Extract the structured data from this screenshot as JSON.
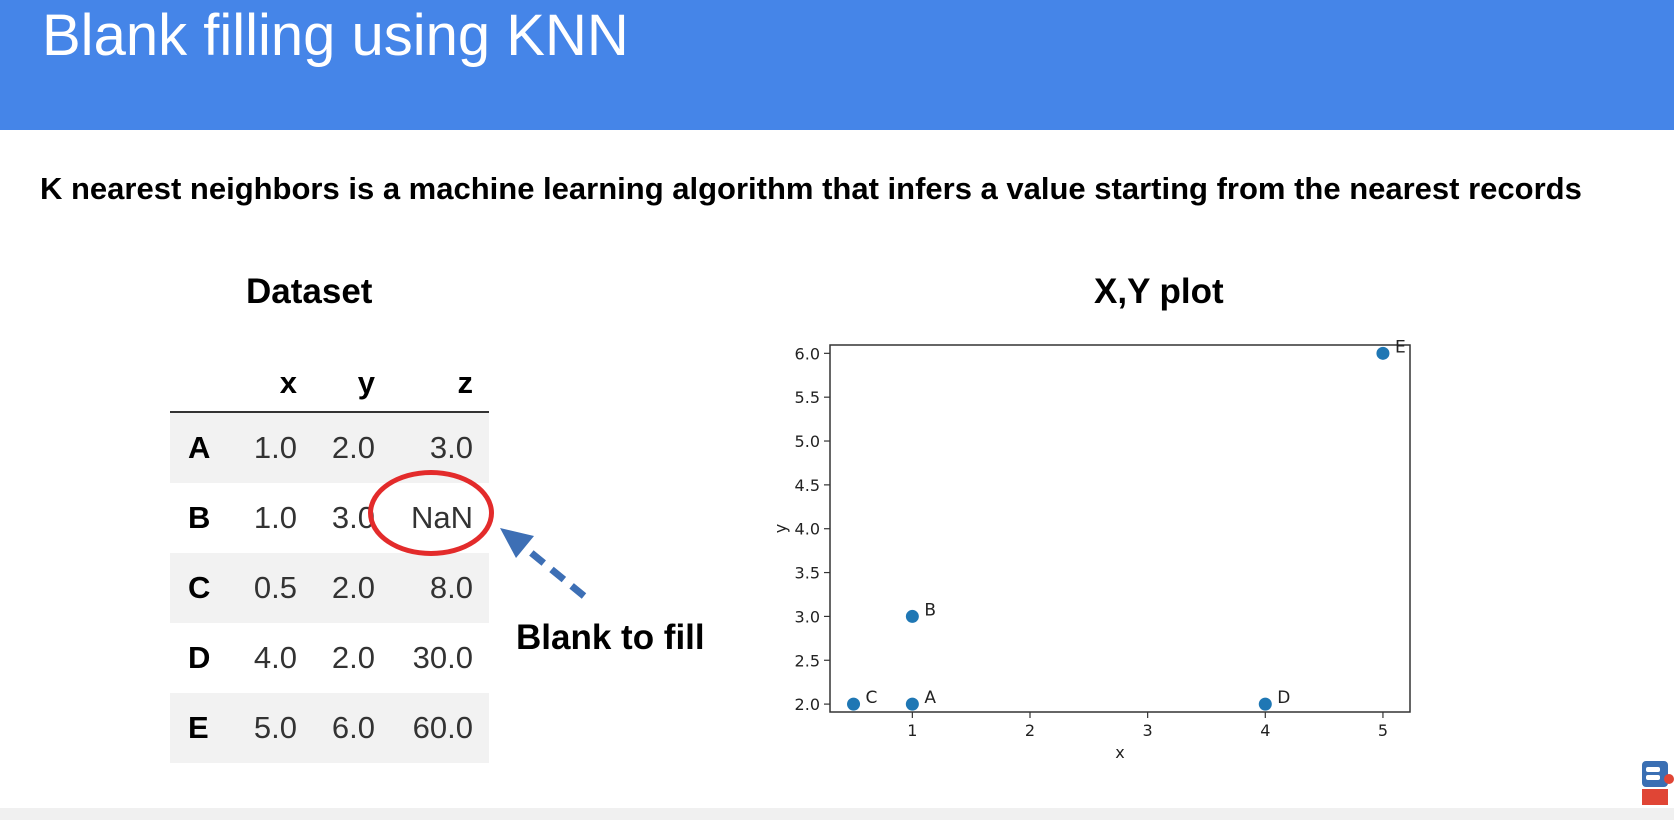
{
  "slide": {
    "title": "Blank filling using KNN",
    "intro": "K nearest neighbors is a machine learning algorithm that infers a value starting from the nearest records",
    "header_color": "#4585e8"
  },
  "dataset": {
    "title": "Dataset",
    "columns": [
      "x",
      "y",
      "z"
    ],
    "rows": [
      {
        "label": "A",
        "x": "1.0",
        "y": "2.0",
        "z": "3.0"
      },
      {
        "label": "B",
        "x": "1.0",
        "y": "3.0",
        "z": "NaN"
      },
      {
        "label": "C",
        "x": "0.5",
        "y": "2.0",
        "z": "8.0"
      },
      {
        "label": "D",
        "x": "4.0",
        "y": "2.0",
        "z": "30.0"
      },
      {
        "label": "E",
        "x": "5.0",
        "y": "6.0",
        "z": "60.0"
      }
    ],
    "highlight_color": "#e32b2b"
  },
  "annotation": {
    "label": "Blank to fill",
    "arrow_color": "#3d6fb5"
  },
  "chart_data": {
    "type": "scatter",
    "title": "X,Y plot",
    "xlabel": "x",
    "ylabel": "y",
    "xlim": [
      0.3,
      5.23
    ],
    "ylim": [
      1.91,
      6.095
    ],
    "xticks": [
      1,
      2,
      3,
      4,
      5
    ],
    "yticks": [
      2.0,
      2.5,
      3.0,
      3.5,
      4.0,
      4.5,
      5.0,
      5.5,
      6.0
    ],
    "grid": false,
    "marker_color": "#1f77b4",
    "points": [
      {
        "label": "A",
        "x": 1.0,
        "y": 2.0
      },
      {
        "label": "B",
        "x": 1.0,
        "y": 3.0
      },
      {
        "label": "C",
        "x": 0.5,
        "y": 2.0
      },
      {
        "label": "D",
        "x": 4.0,
        "y": 2.0
      },
      {
        "label": "E",
        "x": 5.0,
        "y": 6.0
      }
    ]
  }
}
